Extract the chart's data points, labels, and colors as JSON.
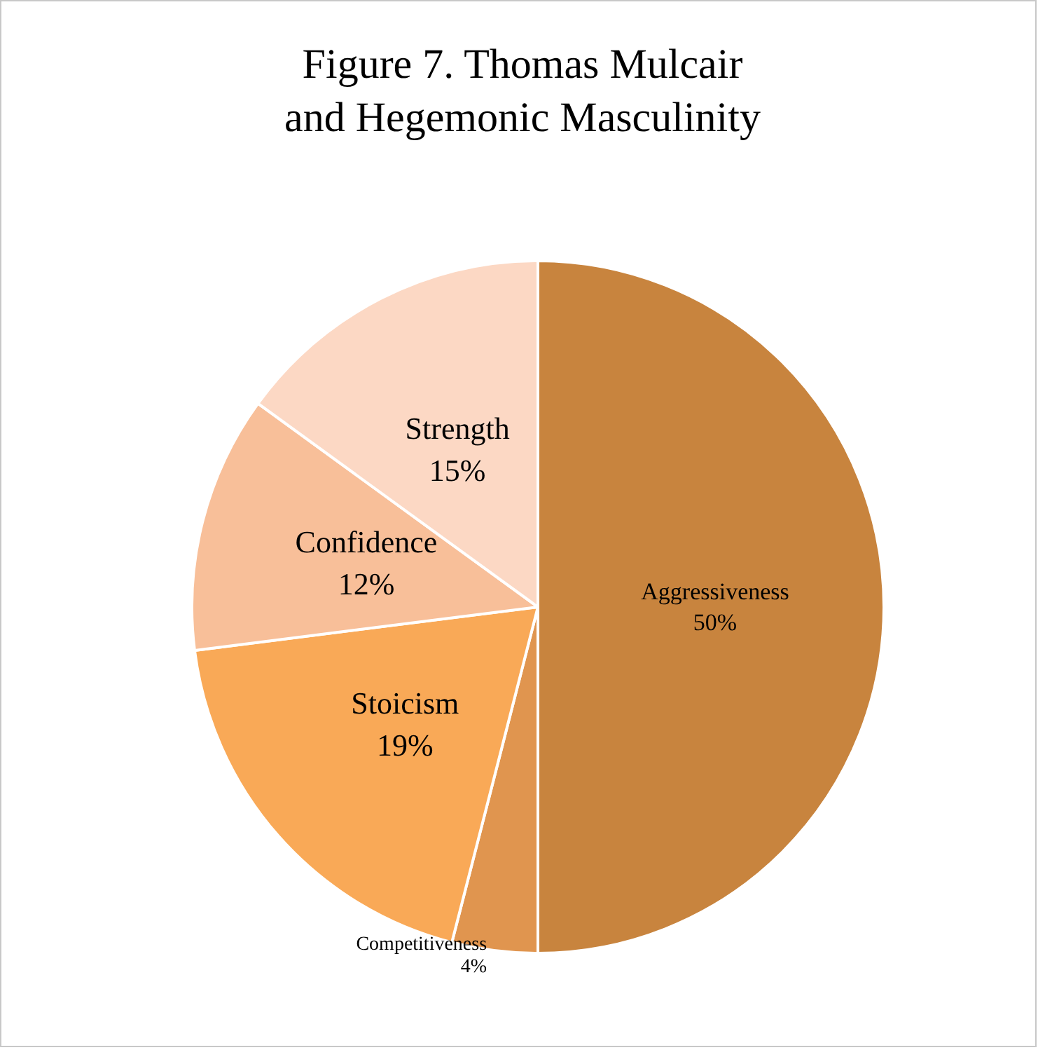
{
  "chart_data": {
    "type": "pie",
    "title": "Figure 7. Thomas Mulcair\nand Hegemonic Masculinity",
    "categories": [
      "Aggressiveness",
      "Competitiveness",
      "Stoicism",
      "Confidence",
      "Strength"
    ],
    "values": [
      50,
      4,
      19,
      12,
      15
    ],
    "value_labels": [
      "50%",
      "4%",
      "19%",
      "12%",
      "15%"
    ],
    "colors": [
      "#c8843e",
      "#e0954f",
      "#f9a957",
      "#f8bf99",
      "#fcd8c4"
    ],
    "legend": false
  }
}
